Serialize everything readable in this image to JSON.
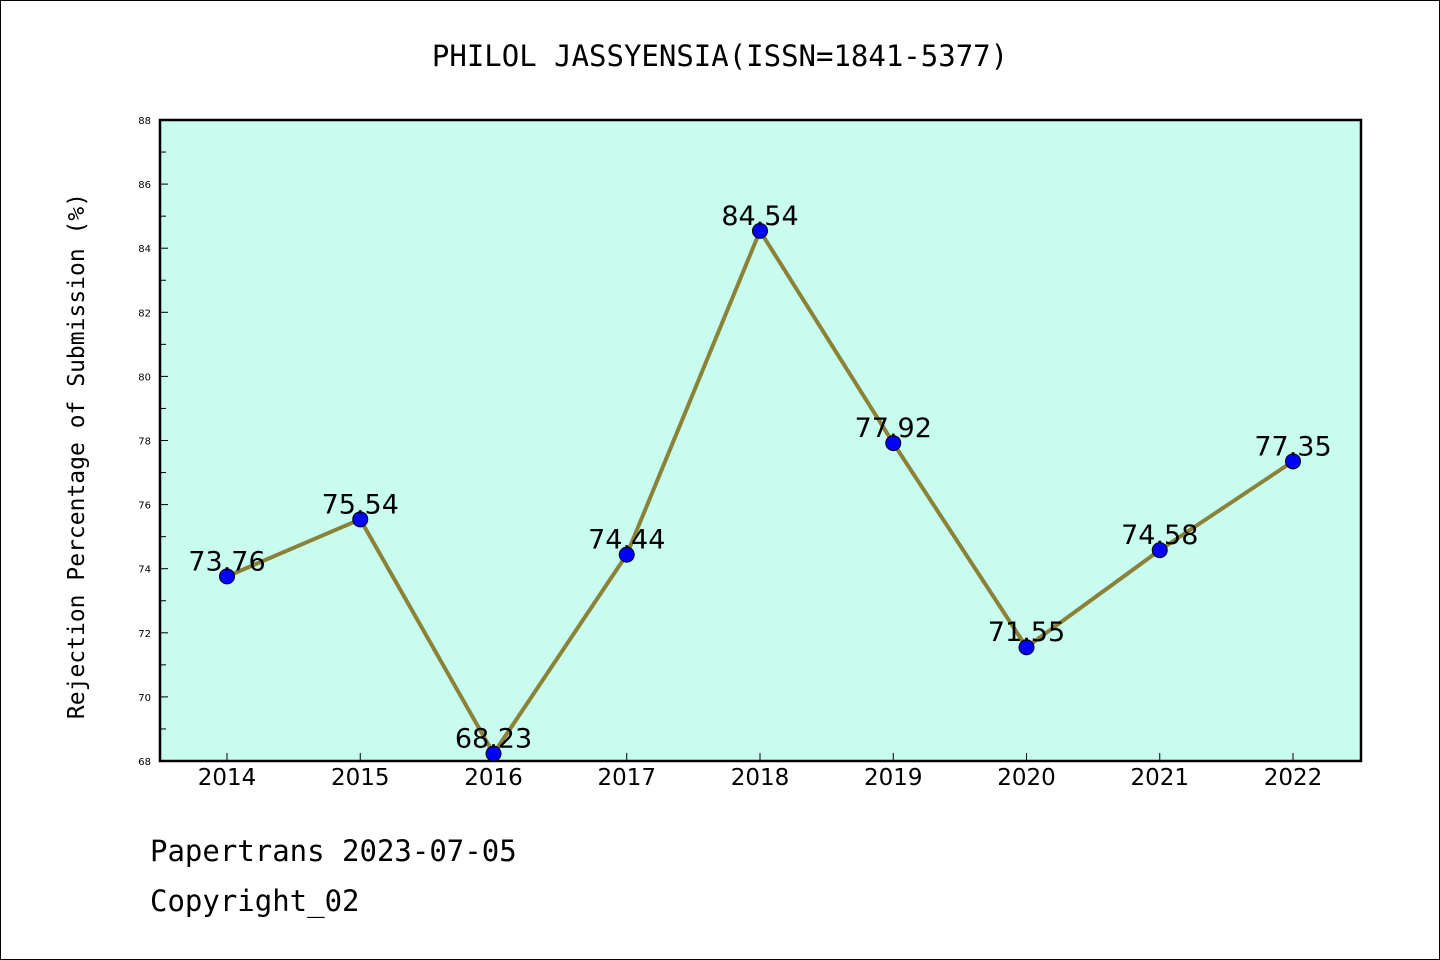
{
  "chart_data": {
    "type": "line",
    "title": "PHILOL JASSYENSIA(ISSN=1841-5377)",
    "xlabel": "",
    "ylabel": "Rejection Percentage of Submission (%)",
    "categories": [
      "2014",
      "2015",
      "2016",
      "2017",
      "2018",
      "2019",
      "2020",
      "2021",
      "2022"
    ],
    "values": [
      73.76,
      75.54,
      68.23,
      74.44,
      84.54,
      77.92,
      71.55,
      74.58,
      77.35
    ],
    "data_labels": [
      "73.76",
      "75.54",
      "68.23",
      "74.44",
      "84.54",
      "77.92",
      "71.55",
      "74.58",
      "77.35"
    ],
    "ylim": [
      68,
      88
    ],
    "yticks": [
      "68",
      "70",
      "72",
      "74",
      "76",
      "78",
      "80",
      "82",
      "84",
      "86",
      "88"
    ],
    "grid": false,
    "colors": {
      "plot_background": "#c8fcee",
      "line": "#8b8238",
      "marker": "#0000ff"
    }
  },
  "footer": {
    "line1": "Papertrans 2023-07-05",
    "line2": "Copyright_02"
  }
}
